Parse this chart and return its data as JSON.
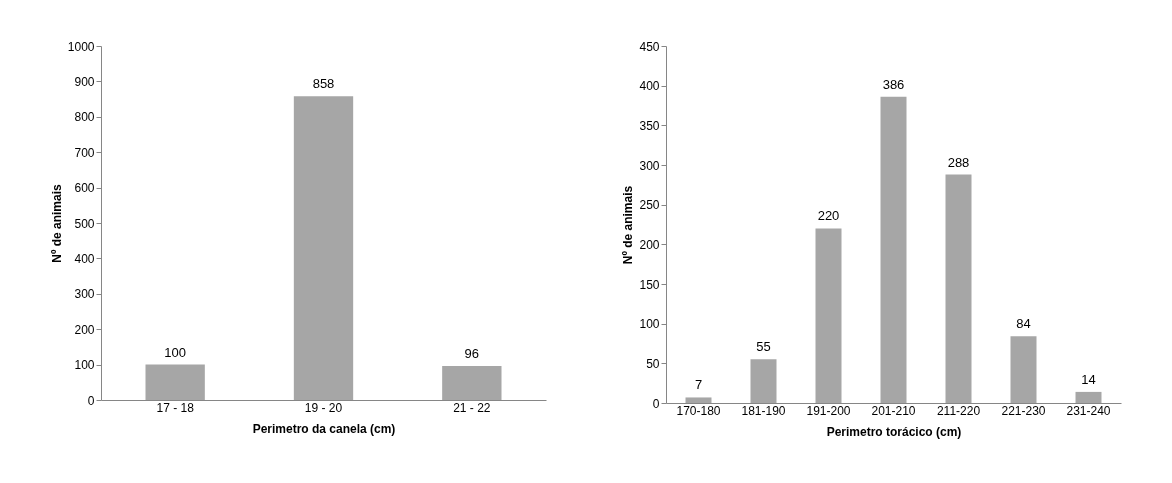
{
  "chart_data": [
    {
      "type": "bar",
      "categories": [
        "17 - 18",
        "19 - 20",
        "21 - 22"
      ],
      "values": [
        100,
        858,
        96
      ],
      "color": "#a6a6a6",
      "ylim": [
        0,
        1000
      ],
      "yticks": [
        0,
        100,
        200,
        300,
        400,
        500,
        600,
        700,
        800,
        900,
        1000
      ],
      "xlabel": "Perimetro da canela (cm)",
      "ylabel": "Nº de animais",
      "data_labels": true,
      "grid": false
    },
    {
      "type": "bar",
      "categories": [
        "170-180",
        "181-190",
        "191-200",
        "201-210",
        "211-220",
        "221-230",
        "231-240"
      ],
      "values": [
        7,
        55,
        220,
        386,
        288,
        84,
        14
      ],
      "color": "#a6a6a6",
      "ylim": [
        0,
        450
      ],
      "yticks": [
        0,
        50,
        100,
        150,
        200,
        250,
        300,
        350,
        400,
        450
      ],
      "xlabel": "Perimetro torácico (cm)",
      "ylabel": "Nº de animais",
      "data_labels": true,
      "grid": false
    }
  ]
}
